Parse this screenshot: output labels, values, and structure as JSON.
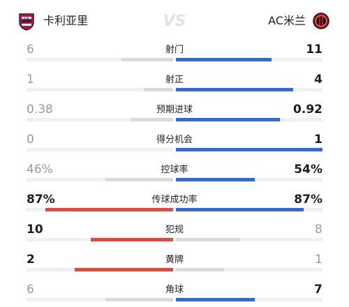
{
  "header": {
    "home_team": "卡利亚里",
    "away_team": "AC米兰",
    "vs_label": "VS",
    "home_logo_icon": "cagliari-crest-icon",
    "away_logo_icon": "ac-milan-crest-icon"
  },
  "colors": {
    "home_accent": "#e5483b",
    "away_accent": "#2f6bd8",
    "neutral_bar": "#d8dade",
    "track": "#eef0f3"
  },
  "stats": [
    {
      "label": "射门",
      "home": "6",
      "away": "11",
      "home_share": 0.35,
      "away_share": 0.65,
      "winner": "away"
    },
    {
      "label": "射正",
      "home": "1",
      "away": "4",
      "home_share": 0.2,
      "away_share": 0.8,
      "winner": "away"
    },
    {
      "label": "预期进球",
      "home": "0.38",
      "away": "0.92",
      "home_share": 0.29,
      "away_share": 0.71,
      "winner": "away"
    },
    {
      "label": "得分机会",
      "home": "0",
      "away": "1",
      "home_share": 0.0,
      "away_share": 1.0,
      "winner": "away"
    },
    {
      "label": "控球率",
      "home": "46%",
      "away": "54%",
      "home_share": 0.46,
      "away_share": 0.54,
      "winner": "away"
    },
    {
      "label": "传球成功率",
      "home": "87%",
      "away": "87%",
      "home_share": 0.87,
      "away_share": 0.87,
      "winner": "both"
    },
    {
      "label": "犯规",
      "home": "10",
      "away": "8",
      "home_share": 0.56,
      "away_share": 0.44,
      "winner": "home"
    },
    {
      "label": "黄牌",
      "home": "2",
      "away": "1",
      "home_share": 0.67,
      "away_share": 0.33,
      "winner": "home"
    },
    {
      "label": "角球",
      "home": "6",
      "away": "7",
      "home_share": 0.46,
      "away_share": 0.54,
      "winner": "away"
    }
  ]
}
